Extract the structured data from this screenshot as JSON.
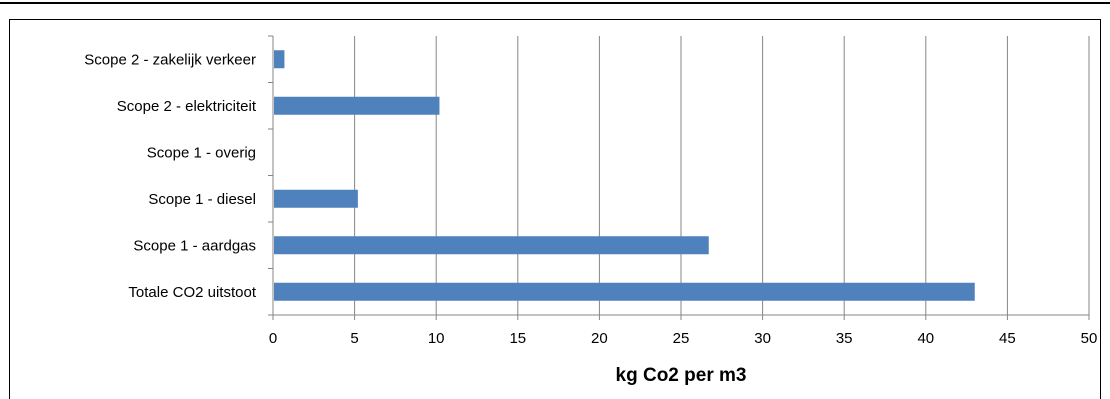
{
  "chart_data": {
    "type": "bar",
    "orientation": "horizontal",
    "categories": [
      "Scope 2 - zakelijk verkeer",
      "Scope 2 - elektriciteit",
      "Scope 1 - overig",
      "Scope 1 - diesel",
      "Scope 1 - aardgas",
      "Totale CO2 uitstoot"
    ],
    "values": [
      0.7,
      10.2,
      0,
      5.2,
      26.7,
      43.0
    ],
    "xlabel": "kg Co2 per m3",
    "ylabel": "",
    "title": "",
    "xlim": [
      0,
      50
    ],
    "xticks": [
      "0",
      "5",
      "10",
      "15",
      "20",
      "25",
      "30",
      "35",
      "40",
      "45",
      "50"
    ],
    "grid": "vertical",
    "bar_color": "#4f81bd",
    "grid_color": "#868686",
    "legend": "none"
  }
}
